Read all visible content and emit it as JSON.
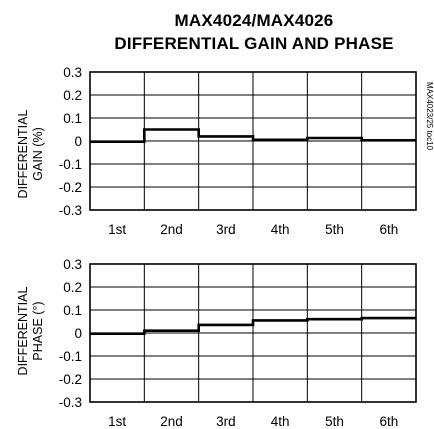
{
  "page": {
    "title_line1": "MAX4024/MAX4026",
    "title_line2": "DIFFERENTIAL GAIN AND PHASE",
    "side_note": "MAX4023/25 toc10"
  },
  "chart_data": [
    {
      "type": "line",
      "ylabel_line1": "DIFFERENTIAL",
      "ylabel_line2": "GAIN (%)",
      "categories": [
        "1st",
        "2nd",
        "3rd",
        "4th",
        "5th",
        "6th"
      ],
      "values": [
        -0.003,
        0.05,
        0.02,
        0.005,
        0.013,
        0.003
      ],
      "ylim": [
        -0.3,
        0.3
      ],
      "yticks": [
        "0.3",
        "0.2",
        "0.1",
        "0",
        "-0.1",
        "-0.2",
        "-0.3"
      ],
      "grid": true,
      "step": true
    },
    {
      "type": "line",
      "ylabel_line1": "DIFFERENTIAL",
      "ylabel_line2": "PHASE (°)",
      "categories": [
        "1st",
        "2nd",
        "3rd",
        "4th",
        "5th",
        "6th"
      ],
      "values": [
        -0.003,
        0.01,
        0.035,
        0.055,
        0.06,
        0.065
      ],
      "ylim": [
        -0.3,
        0.3
      ],
      "yticks": [
        "0.3",
        "0.2",
        "0.1",
        "0",
        "-0.1",
        "-0.2",
        "-0.3"
      ],
      "grid": true,
      "step": true
    }
  ]
}
